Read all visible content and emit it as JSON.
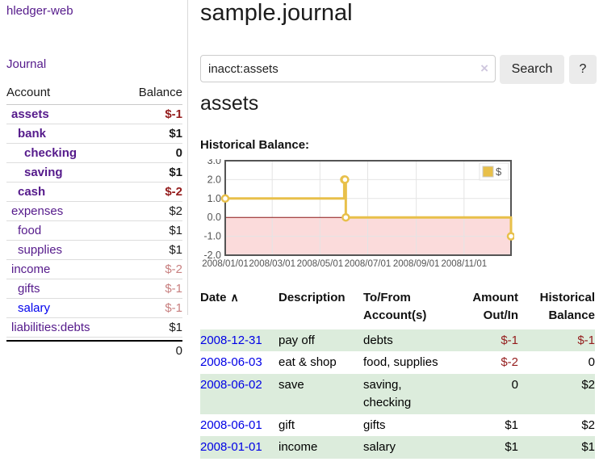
{
  "sidebar": {
    "app_title": "hledger-web",
    "journal_link": "Journal",
    "accounts_header": {
      "account": "Account",
      "balance": "Balance"
    },
    "accounts": [
      {
        "name": "assets",
        "indent": 1,
        "bold": true,
        "balance": "$-1",
        "neg": "strong",
        "blue": false
      },
      {
        "name": "bank",
        "indent": 2,
        "bold": true,
        "balance": "$1",
        "neg": "none",
        "blue": false
      },
      {
        "name": "checking",
        "indent": 3,
        "bold": true,
        "balance": "0",
        "neg": "none",
        "blue": false
      },
      {
        "name": "saving",
        "indent": 3,
        "bold": true,
        "balance": "$1",
        "neg": "none",
        "blue": false
      },
      {
        "name": "cash",
        "indent": 2,
        "bold": true,
        "balance": "$-2",
        "neg": "strong",
        "blue": false
      },
      {
        "name": "expenses",
        "indent": 1,
        "bold": false,
        "balance": "$2",
        "neg": "none",
        "blue": false
      },
      {
        "name": "food",
        "indent": 2,
        "bold": false,
        "balance": "$1",
        "neg": "none",
        "blue": false
      },
      {
        "name": "supplies",
        "indent": 2,
        "bold": false,
        "balance": "$1",
        "neg": "none",
        "blue": false
      },
      {
        "name": "income",
        "indent": 1,
        "bold": false,
        "balance": "$-2",
        "neg": "soft",
        "blue": false
      },
      {
        "name": "gifts",
        "indent": 2,
        "bold": false,
        "balance": "$-1",
        "neg": "soft",
        "blue": false
      },
      {
        "name": "salary",
        "indent": 2,
        "bold": false,
        "balance": "$-1",
        "neg": "soft",
        "blue": true
      },
      {
        "name": "liabilities:debts",
        "indent": 1,
        "bold": false,
        "balance": "$1",
        "neg": "none",
        "blue": false
      }
    ],
    "total": "0"
  },
  "main": {
    "title": "sample.journal",
    "search": {
      "query": "inacct:assets",
      "clear_icon": "×",
      "search_label": "Search",
      "help_label": "?"
    },
    "account_heading": "assets",
    "chart_label": "Historical Balance:",
    "register": {
      "headers": [
        "Date",
        "Description",
        "To/From Account(s)",
        "Amount Out/In",
        "Historical Balance"
      ],
      "sort_icon": "∧",
      "rows": [
        {
          "date": "2008-12-31",
          "description": "pay off",
          "accounts": "debts",
          "amount": "$-1",
          "amount_neg": true,
          "balance": "$-1",
          "balance_neg": true
        },
        {
          "date": "2008-06-03",
          "description": "eat & shop",
          "accounts": "food, supplies",
          "amount": "$-2",
          "amount_neg": true,
          "balance": "0",
          "balance_neg": false
        },
        {
          "date": "2008-06-02",
          "description": "save",
          "accounts": "saving, checking",
          "amount": "0",
          "amount_neg": false,
          "balance": "$2",
          "balance_neg": false
        },
        {
          "date": "2008-06-01",
          "description": "gift",
          "accounts": "gifts",
          "amount": "$1",
          "amount_neg": false,
          "balance": "$2",
          "balance_neg": false
        },
        {
          "date": "2008-01-01",
          "description": "income",
          "accounts": "salary",
          "amount": "$1",
          "amount_neg": false,
          "balance": "$1",
          "balance_neg": false
        }
      ]
    }
  },
  "chart_data": {
    "type": "line",
    "steps": true,
    "title": "Historical Balance",
    "legend": [
      {
        "label": "$",
        "color": "#e8c04a"
      }
    ],
    "legend_position": "top-right",
    "grid": true,
    "xlim_days": [
      0,
      365
    ],
    "ylim": [
      -2,
      3
    ],
    "yticks": [
      {
        "value": 3,
        "label": "3.0"
      },
      {
        "value": 2,
        "label": "2.0"
      },
      {
        "value": 1,
        "label": "1.0"
      },
      {
        "value": 0,
        "label": "0.0"
      },
      {
        "value": -1,
        "label": "-1.0"
      },
      {
        "value": -2,
        "label": "-2.0"
      }
    ],
    "xticks": [
      {
        "day": 0,
        "label": "2008/01/01"
      },
      {
        "day": 60,
        "label": "2008/03/01"
      },
      {
        "day": 121,
        "label": "2008/05/01"
      },
      {
        "day": 182,
        "label": "2008/07/01"
      },
      {
        "day": 244,
        "label": "2008/09/01"
      },
      {
        "day": 305,
        "label": "2008/11/01"
      }
    ],
    "series": [
      {
        "name": "$",
        "points": [
          {
            "date": "2008-01-01",
            "day": 0,
            "y": 1
          },
          {
            "date": "2008-06-01",
            "day": 152,
            "y": 2
          },
          {
            "date": "2008-06-02",
            "day": 153,
            "y": 2
          },
          {
            "date": "2008-06-03",
            "day": 154,
            "y": 0
          },
          {
            "date": "2008-12-31",
            "day": 365,
            "y": -1
          }
        ]
      }
    ],
    "colors": {
      "line": "#e8c04a",
      "marker_fill": "#ffffff",
      "negative_region": "#fbdbdb",
      "zero_line": "#8b1717",
      "grid": "#e4e4e4",
      "border": "#545454",
      "tick_text": "#545454"
    }
  }
}
